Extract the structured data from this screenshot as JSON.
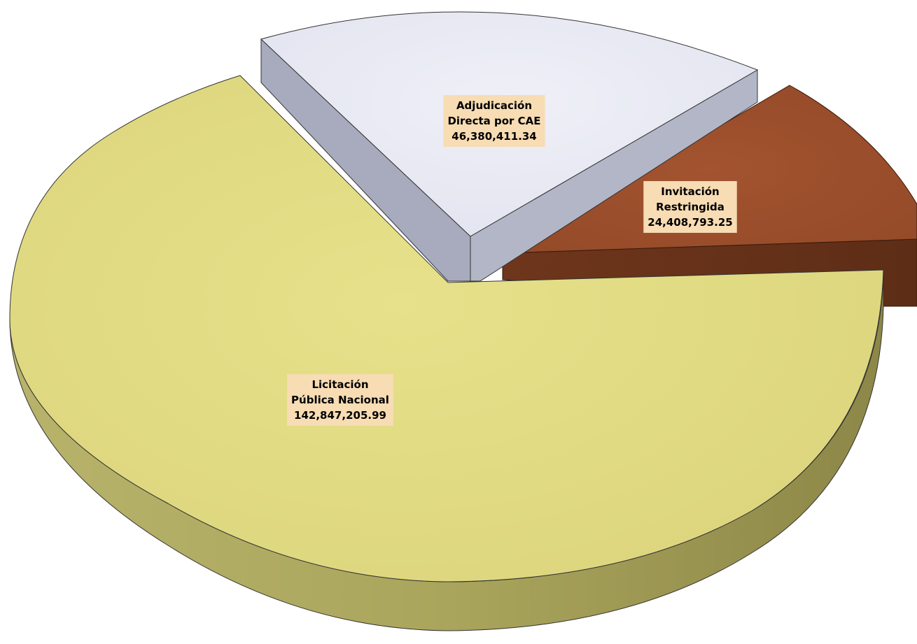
{
  "chart_data": {
    "type": "pie",
    "style": "3d-exploded",
    "slices": [
      {
        "name": "Licitación Pública Nacional",
        "label_lines": [
          "Licitación",
          "Pública Nacional"
        ],
        "value": 142847205.99,
        "value_text": "142,847,205.99",
        "color": "#e3dd84"
      },
      {
        "name": "Adjudicación Directa por CAE",
        "label_lines": [
          "Adjudicación",
          "Directa por CAE"
        ],
        "value": 46380411.34,
        "value_text": "46,380,411.34",
        "color": "#e6e8f2"
      },
      {
        "name": "Invitación Restringida",
        "label_lines": [
          "Invitación",
          "Restringida"
        ],
        "value": 24408793.25,
        "value_text": "24,408,793.25",
        "color": "#9a4e2c"
      }
    ],
    "label_box_color": "#f7dcb4",
    "legend": "none"
  }
}
